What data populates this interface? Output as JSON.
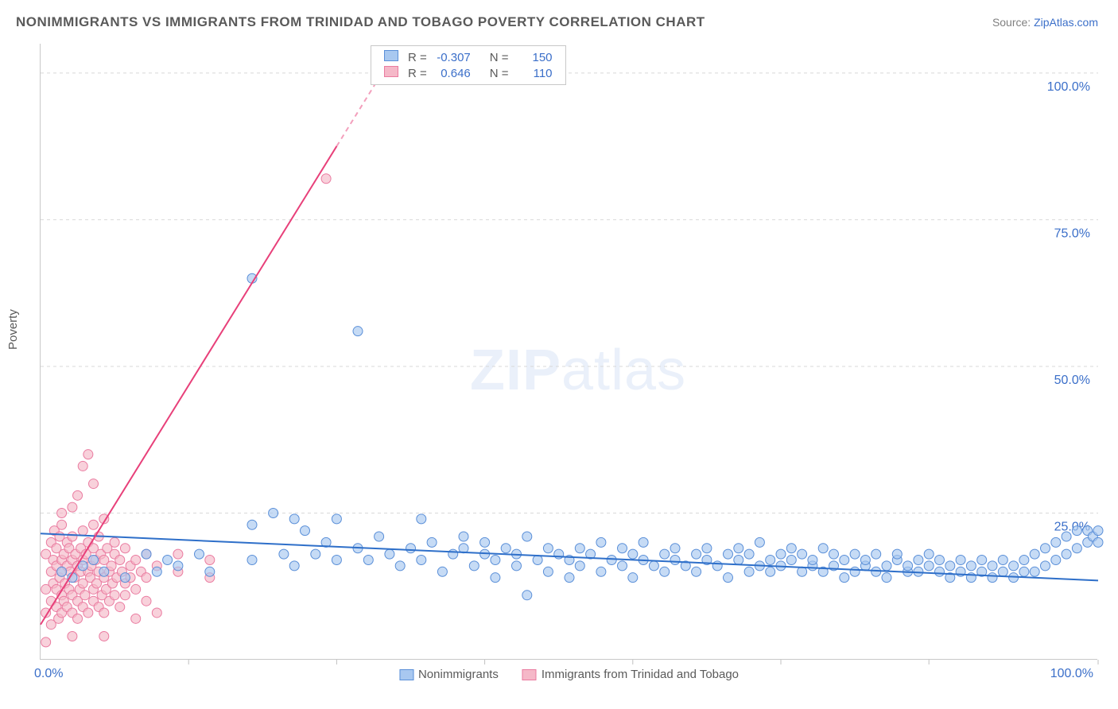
{
  "title": "NONIMMIGRANTS VS IMMIGRANTS FROM TRINIDAD AND TOBAGO POVERTY CORRELATION CHART",
  "source_label": "Source:",
  "source_name": "ZipAtlas.com",
  "ylabel": "Poverty",
  "watermark_bold": "ZIP",
  "watermark_light": "atlas",
  "chart": {
    "type": "scatter",
    "xlim": [
      0,
      100
    ],
    "ylim": [
      0,
      105
    ],
    "yticks": [
      25,
      50,
      75,
      100
    ],
    "ytick_labels": [
      "25.0%",
      "50.0%",
      "75.0%",
      "100.0%"
    ],
    "xtick_left": "0.0%",
    "xtick_right": "100.0%",
    "xtick_marks": [
      14,
      28,
      42,
      56,
      70,
      84,
      100
    ],
    "background_color": "#ffffff",
    "grid_color": "#d8d8d8",
    "axis_color": "#c8c8c8",
    "series": [
      {
        "name": "Nonimmigrants",
        "color_fill": "#a8c8f0",
        "color_stroke": "#5a8fd8",
        "marker_radius": 6,
        "marker_opacity": 0.65,
        "trend": {
          "x1": 0,
          "y1": 21.5,
          "x2": 100,
          "y2": 13.5,
          "color": "#2e6fc9",
          "width": 2
        },
        "points": [
          [
            2,
            15
          ],
          [
            3,
            14
          ],
          [
            4,
            16
          ],
          [
            5,
            17
          ],
          [
            6,
            15
          ],
          [
            8,
            14
          ],
          [
            10,
            18
          ],
          [
            11,
            15
          ],
          [
            12,
            17
          ],
          [
            13,
            16
          ],
          [
            15,
            18
          ],
          [
            16,
            15
          ],
          [
            20,
            23
          ],
          [
            20,
            17
          ],
          [
            20,
            65
          ],
          [
            22,
            25
          ],
          [
            23,
            18
          ],
          [
            24,
            16
          ],
          [
            24,
            24
          ],
          [
            25,
            22
          ],
          [
            26,
            18
          ],
          [
            27,
            20
          ],
          [
            28,
            17
          ],
          [
            28,
            24
          ],
          [
            30,
            56
          ],
          [
            30,
            19
          ],
          [
            31,
            17
          ],
          [
            32,
            21
          ],
          [
            33,
            18
          ],
          [
            34,
            16
          ],
          [
            35,
            19
          ],
          [
            36,
            24
          ],
          [
            36,
            17
          ],
          [
            37,
            20
          ],
          [
            38,
            15
          ],
          [
            39,
            18
          ],
          [
            40,
            19
          ],
          [
            40,
            21
          ],
          [
            41,
            16
          ],
          [
            42,
            18
          ],
          [
            42,
            20
          ],
          [
            43,
            17
          ],
          [
            43,
            14
          ],
          [
            44,
            19
          ],
          [
            45,
            18
          ],
          [
            45,
            16
          ],
          [
            46,
            11
          ],
          [
            46,
            21
          ],
          [
            47,
            17
          ],
          [
            48,
            19
          ],
          [
            48,
            15
          ],
          [
            49,
            18
          ],
          [
            50,
            14
          ],
          [
            50,
            17
          ],
          [
            51,
            19
          ],
          [
            51,
            16
          ],
          [
            52,
            18
          ],
          [
            53,
            15
          ],
          [
            53,
            20
          ],
          [
            54,
            17
          ],
          [
            55,
            16
          ],
          [
            55,
            19
          ],
          [
            56,
            18
          ],
          [
            56,
            14
          ],
          [
            57,
            17
          ],
          [
            57,
            20
          ],
          [
            58,
            16
          ],
          [
            59,
            18
          ],
          [
            59,
            15
          ],
          [
            60,
            17
          ],
          [
            60,
            19
          ],
          [
            61,
            16
          ],
          [
            62,
            18
          ],
          [
            62,
            15
          ],
          [
            63,
            17
          ],
          [
            63,
            19
          ],
          [
            64,
            16
          ],
          [
            65,
            18
          ],
          [
            65,
            14
          ],
          [
            66,
            17
          ],
          [
            66,
            19
          ],
          [
            67,
            15
          ],
          [
            67,
            18
          ],
          [
            68,
            16
          ],
          [
            68,
            20
          ],
          [
            69,
            17
          ],
          [
            69,
            15
          ],
          [
            70,
            18
          ],
          [
            70,
            16
          ],
          [
            71,
            17
          ],
          [
            71,
            19
          ],
          [
            72,
            15
          ],
          [
            72,
            18
          ],
          [
            73,
            16
          ],
          [
            73,
            17
          ],
          [
            74,
            15
          ],
          [
            74,
            19
          ],
          [
            75,
            16
          ],
          [
            75,
            18
          ],
          [
            76,
            14
          ],
          [
            76,
            17
          ],
          [
            77,
            18
          ],
          [
            77,
            15
          ],
          [
            78,
            16
          ],
          [
            78,
            17
          ],
          [
            79,
            15
          ],
          [
            79,
            18
          ],
          [
            80,
            16
          ],
          [
            80,
            14
          ],
          [
            81,
            17
          ],
          [
            81,
            18
          ],
          [
            82,
            15
          ],
          [
            82,
            16
          ],
          [
            83,
            17
          ],
          [
            83,
            15
          ],
          [
            84,
            16
          ],
          [
            84,
            18
          ],
          [
            85,
            15
          ],
          [
            85,
            17
          ],
          [
            86,
            14
          ],
          [
            86,
            16
          ],
          [
            87,
            15
          ],
          [
            87,
            17
          ],
          [
            88,
            14
          ],
          [
            88,
            16
          ],
          [
            89,
            15
          ],
          [
            89,
            17
          ],
          [
            90,
            14
          ],
          [
            90,
            16
          ],
          [
            91,
            15
          ],
          [
            91,
            17
          ],
          [
            92,
            14
          ],
          [
            92,
            16
          ],
          [
            93,
            15
          ],
          [
            93,
            17
          ],
          [
            94,
            15
          ],
          [
            94,
            18
          ],
          [
            95,
            16
          ],
          [
            95,
            19
          ],
          [
            96,
            17
          ],
          [
            96,
            20
          ],
          [
            97,
            18
          ],
          [
            97,
            21
          ],
          [
            98,
            19
          ],
          [
            98,
            22
          ],
          [
            99,
            20
          ],
          [
            99,
            22
          ],
          [
            99.5,
            21
          ],
          [
            100,
            22
          ],
          [
            100,
            20
          ]
        ]
      },
      {
        "name": "Immigrants from Trinidad and Tobago",
        "color_fill": "#f5b8c8",
        "color_stroke": "#ea7ba0",
        "marker_radius": 6,
        "marker_opacity": 0.65,
        "trend": {
          "x1": 0,
          "y1": 6,
          "x2": 34,
          "y2": 105,
          "color": "#e8407a",
          "width": 2,
          "dash_from_x": 28
        },
        "points": [
          [
            0.5,
            12
          ],
          [
            0.5,
            18
          ],
          [
            0.5,
            8
          ],
          [
            1,
            15
          ],
          [
            1,
            10
          ],
          [
            1,
            20
          ],
          [
            1,
            6
          ],
          [
            1.2,
            17
          ],
          [
            1.2,
            13
          ],
          [
            1.3,
            22
          ],
          [
            1.5,
            9
          ],
          [
            1.5,
            16
          ],
          [
            1.5,
            19
          ],
          [
            1.5,
            12
          ],
          [
            1.7,
            7
          ],
          [
            1.8,
            14
          ],
          [
            1.8,
            21
          ],
          [
            2,
            11
          ],
          [
            2,
            17
          ],
          [
            2,
            8
          ],
          [
            2,
            23
          ],
          [
            2,
            15
          ],
          [
            2,
            25
          ],
          [
            2.2,
            10
          ],
          [
            2.2,
            18
          ],
          [
            2.3,
            13
          ],
          [
            2.5,
            16
          ],
          [
            2.5,
            9
          ],
          [
            2.5,
            20
          ],
          [
            2.7,
            12
          ],
          [
            2.7,
            19
          ],
          [
            2.8,
            15
          ],
          [
            3,
            11
          ],
          [
            3,
            17
          ],
          [
            3,
            8
          ],
          [
            3,
            21
          ],
          [
            3,
            26
          ],
          [
            3.2,
            14
          ],
          [
            3.3,
            18
          ],
          [
            3.5,
            10
          ],
          [
            3.5,
            16
          ],
          [
            3.5,
            28
          ],
          [
            3.5,
            7
          ],
          [
            3.7,
            12
          ],
          [
            3.8,
            19
          ],
          [
            3.8,
            15
          ],
          [
            4,
            9
          ],
          [
            4,
            17
          ],
          [
            4,
            22
          ],
          [
            4,
            13
          ],
          [
            4,
            33
          ],
          [
            4.2,
            11
          ],
          [
            4.3,
            18
          ],
          [
            4.5,
            15
          ],
          [
            4.5,
            8
          ],
          [
            4.5,
            20
          ],
          [
            4.5,
            35
          ],
          [
            4.7,
            14
          ],
          [
            4.8,
            16
          ],
          [
            5,
            12
          ],
          [
            5,
            19
          ],
          [
            5,
            10
          ],
          [
            5,
            23
          ],
          [
            5,
            30
          ],
          [
            5.2,
            17
          ],
          [
            5.3,
            13
          ],
          [
            5.5,
            15
          ],
          [
            5.5,
            9
          ],
          [
            5.5,
            21
          ],
          [
            5.7,
            18
          ],
          [
            5.8,
            11
          ],
          [
            6,
            14
          ],
          [
            6,
            17
          ],
          [
            6,
            8
          ],
          [
            6,
            24
          ],
          [
            6.2,
            12
          ],
          [
            6.3,
            19
          ],
          [
            6.5,
            15
          ],
          [
            6.5,
            10
          ],
          [
            6.7,
            16
          ],
          [
            6.8,
            13
          ],
          [
            7,
            18
          ],
          [
            7,
            11
          ],
          [
            7,
            20
          ],
          [
            7.2,
            14
          ],
          [
            7.5,
            17
          ],
          [
            7.5,
            9
          ],
          [
            7.7,
            15
          ],
          [
            8,
            13
          ],
          [
            8,
            19
          ],
          [
            8,
            11
          ],
          [
            8.5,
            16
          ],
          [
            8.5,
            14
          ],
          [
            9,
            17
          ],
          [
            9,
            12
          ],
          [
            9,
            7
          ],
          [
            9.5,
            15
          ],
          [
            10,
            18
          ],
          [
            10,
            10
          ],
          [
            10,
            14
          ],
          [
            11,
            16
          ],
          [
            11,
            8
          ],
          [
            13,
            18
          ],
          [
            13,
            15
          ],
          [
            16,
            14
          ],
          [
            16,
            17
          ],
          [
            27,
            82
          ],
          [
            0.5,
            3
          ],
          [
            6,
            4
          ],
          [
            3,
            4
          ]
        ]
      }
    ]
  },
  "stats": {
    "rows": [
      {
        "swatch_fill": "#a8c8f0",
        "swatch_stroke": "#5a8fd8",
        "r_label": "R =",
        "r_val": "-0.307",
        "n_label": "N =",
        "n_val": "150"
      },
      {
        "swatch_fill": "#f5b8c8",
        "swatch_stroke": "#ea7ba0",
        "r_label": "R =",
        "r_val": "0.646",
        "n_label": "N =",
        "n_val": "110"
      }
    ]
  },
  "legend": {
    "items": [
      {
        "swatch_fill": "#a8c8f0",
        "swatch_stroke": "#5a8fd8",
        "label": "Nonimmigrants"
      },
      {
        "swatch_fill": "#f5b8c8",
        "swatch_stroke": "#ea7ba0",
        "label": "Immigrants from Trinidad and Tobago"
      }
    ]
  }
}
